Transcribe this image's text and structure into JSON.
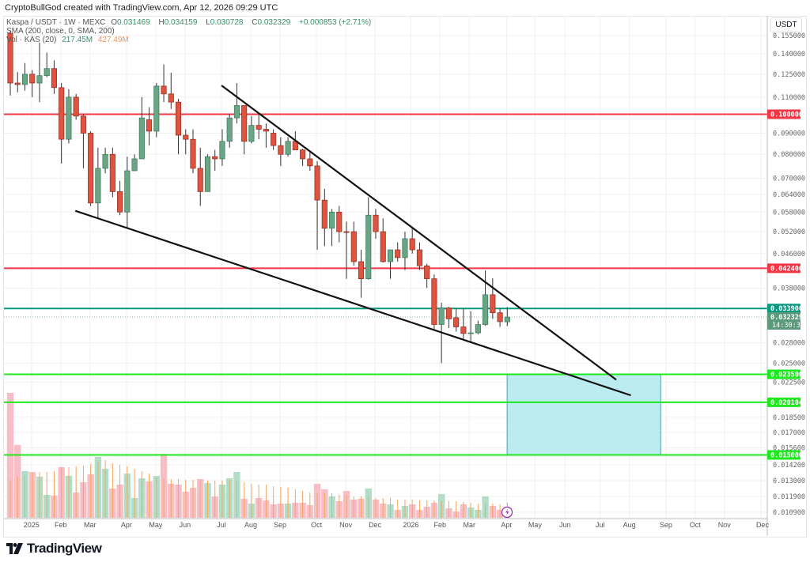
{
  "credit": "CryptoBullGod created with TradingView.com, Apr 12, 2026 09:29 UTC",
  "legend": {
    "symbol": "Kaspa / USDT · 1W · MEXC",
    "o_label": "O",
    "o": "0.031469",
    "h_label": "H",
    "h": "0.034159",
    "l_label": "L",
    "l": "0.030728",
    "c_label": "C",
    "c": "0.032329",
    "change": "+0.000853 (+2.71%)",
    "sma": "SMA (200, close, 0, SMA, 200)",
    "vol": "Vol · KAS (20)",
    "vol_value": "217.45M",
    "vol_ma_value": "427.49M"
  },
  "axis_currency": "USDT",
  "logo_text": "TradingView",
  "colors": {
    "up": "#6aa584",
    "down": "#dd5441",
    "red_line": "#f23645",
    "teal_line": "#089981",
    "green_line": "#1ee81e",
    "box": "#b9eaf0",
    "vol_up": "#aedcc5",
    "vol_down": "#f7bcc2",
    "vol_ma": "#f7a35c"
  },
  "chart_data": {
    "type": "candlestick",
    "title": "Kaspa / USDT · 1W · MEXC",
    "yscale": "log",
    "ylim": [
      0.01057,
      0.169
    ],
    "x_unit": "week index from first visible bar",
    "y_ticks": [
      "0.155000",
      "0.140000",
      "0.125000",
      "0.110000",
      "0.090000",
      "0.080000",
      "0.070000",
      "0.064000",
      "0.058000",
      "0.052000",
      "0.046000",
      "0.038000",
      "0.028000",
      "0.025000",
      "0.022500",
      "0.018500",
      "0.017000",
      "0.015600",
      "0.014200",
      "0.013000",
      "0.011900",
      "0.010900"
    ],
    "x_ticks": [
      {
        "label": "2025",
        "t": 2.9
      },
      {
        "label": "Feb",
        "t": 6.9
      },
      {
        "label": "Mar",
        "t": 10.9
      },
      {
        "label": "Apr",
        "t": 15.9
      },
      {
        "label": "May",
        "t": 19.9
      },
      {
        "label": "Jun",
        "t": 23.9
      },
      {
        "label": "Jul",
        "t": 28.9
      },
      {
        "label": "Aug",
        "t": 32.9
      },
      {
        "label": "Sep",
        "t": 36.9
      },
      {
        "label": "Oct",
        "t": 41.9
      },
      {
        "label": "Nov",
        "t": 45.9
      },
      {
        "label": "Dec",
        "t": 49.9
      },
      {
        "label": "2026",
        "t": 54.8
      },
      {
        "label": "Feb",
        "t": 58.8
      },
      {
        "label": "Mar",
        "t": 62.8
      },
      {
        "label": "Apr",
        "t": 67.9
      },
      {
        "label": "May",
        "t": 71.8
      },
      {
        "label": "Jun",
        "t": 75.9
      },
      {
        "label": "Jul",
        "t": 80.7
      },
      {
        "label": "Aug",
        "t": 84.7
      },
      {
        "label": "Sep",
        "t": 89.7
      },
      {
        "label": "Oct",
        "t": 93.7
      },
      {
        "label": "Nov",
        "t": 97.7
      },
      {
        "label": "Dec",
        "t": 102.7
      }
    ],
    "candles_columns": [
      "open",
      "high",
      "low",
      "close",
      "volume_M",
      "volume_sma_M"
    ],
    "candles": [
      [
        0.157,
        0.159,
        0.111,
        0.119,
        3476,
        1056
      ],
      [
        0.119,
        0.1265,
        0.113,
        0.118,
        2024,
        1144
      ],
      [
        0.118,
        0.133,
        0.114,
        0.125,
        1298,
        1188
      ],
      [
        0.125,
        0.128,
        0.11,
        0.119,
        1276,
        1254
      ],
      [
        0.119,
        0.149,
        0.107,
        0.124,
        1144,
        1276
      ],
      [
        0.124,
        0.141,
        0.123,
        0.129,
        638,
        1276
      ],
      [
        0.129,
        0.135,
        0.112,
        0.116,
        616,
        1298
      ],
      [
        0.116,
        0.119,
        0.076,
        0.087,
        1408,
        1408
      ],
      [
        0.087,
        0.115,
        0.085,
        0.11,
        1166,
        1408
      ],
      [
        0.11,
        0.112,
        0.097,
        0.099,
        704,
        1430
      ],
      [
        0.099,
        0.1,
        0.074,
        0.09,
        990,
        1452
      ],
      [
        0.09,
        0.091,
        0.06,
        0.061,
        1210,
        1496
      ],
      [
        0.061,
        0.083,
        0.056,
        0.074,
        1694,
        1562
      ],
      [
        0.074,
        0.083,
        0.072,
        0.08,
        1364,
        1606
      ],
      [
        0.08,
        0.083,
        0.063,
        0.065,
        814,
        1518
      ],
      [
        0.065,
        0.069,
        0.057,
        0.058,
        924,
        1474
      ],
      [
        0.058,
        0.079,
        0.053,
        0.073,
        1232,
        1430
      ],
      [
        0.073,
        0.08,
        0.073,
        0.078,
        550,
        1364
      ],
      [
        0.078,
        0.11,
        0.078,
        0.098,
        1100,
        1298
      ],
      [
        0.097,
        0.104,
        0.084,
        0.091,
        1012,
        1232
      ],
      [
        0.091,
        0.119,
        0.088,
        0.117,
        1166,
        1122
      ],
      [
        0.117,
        0.132,
        0.107,
        0.112,
        1782,
        1100
      ],
      [
        0.112,
        0.126,
        0.103,
        0.107,
        946,
        1078
      ],
      [
        0.107,
        0.109,
        0.08,
        0.089,
        924,
        1078
      ],
      [
        0.089,
        0.092,
        0.08,
        0.087,
        726,
        1056
      ],
      [
        0.087,
        0.092,
        0.072,
        0.074,
        836,
        1056
      ],
      [
        0.074,
        0.083,
        0.06,
        0.065,
        1078,
        1056
      ],
      [
        0.065,
        0.08,
        0.065,
        0.079,
        968,
        1034
      ],
      [
        0.079,
        0.082,
        0.073,
        0.078,
        594,
        1034
      ],
      [
        0.078,
        0.092,
        0.075,
        0.086,
        924,
        1034
      ],
      [
        0.086,
        0.1,
        0.083,
        0.098,
        1100,
        1056
      ],
      [
        0.098,
        0.119,
        0.095,
        0.105,
        1276,
        1056
      ],
      [
        0.105,
        0.1052,
        0.08,
        0.086,
        528,
        990
      ],
      [
        0.086,
        0.099,
        0.085,
        0.094,
        396,
        946
      ],
      [
        0.094,
        0.1,
        0.087,
        0.092,
        550,
        924
      ],
      [
        0.092,
        0.095,
        0.083,
        0.091,
        484,
        924
      ],
      [
        0.09,
        0.092,
        0.082,
        0.084,
        374,
        880
      ],
      [
        0.084,
        0.088,
        0.075,
        0.08,
        396,
        858
      ],
      [
        0.08,
        0.088,
        0.079,
        0.086,
        396,
        836
      ],
      [
        0.086,
        0.091,
        0.082,
        0.082,
        418,
        792
      ],
      [
        0.082,
        0.0825,
        0.075,
        0.078,
        418,
        748
      ],
      [
        0.078,
        0.081,
        0.073,
        0.075,
        352,
        704
      ],
      [
        0.075,
        0.077,
        0.047,
        0.062,
        946,
        682
      ],
      [
        0.062,
        0.066,
        0.048,
        0.053,
        792,
        682
      ],
      [
        0.053,
        0.059,
        0.048,
        0.058,
        594,
        682
      ],
      [
        0.058,
        0.06,
        0.049,
        0.052,
        462,
        638
      ],
      [
        0.052,
        0.055,
        0.04,
        0.0518,
        748,
        638
      ],
      [
        0.052,
        0.055,
        0.043,
        0.044,
        506,
        594
      ],
      [
        0.044,
        0.047,
        0.036,
        0.04,
        528,
        594
      ],
      [
        0.04,
        0.063,
        0.0398,
        0.057,
        814,
        594
      ],
      [
        0.057,
        0.059,
        0.05,
        0.052,
        506,
        550
      ],
      [
        0.052,
        0.056,
        0.0438,
        0.044,
        396,
        550
      ],
      [
        0.044,
        0.047,
        0.04,
        0.047,
        374,
        550
      ],
      [
        0.047,
        0.049,
        0.044,
        0.045,
        220,
        506
      ],
      [
        0.045,
        0.052,
        0.042,
        0.05,
        330,
        506
      ],
      [
        0.05,
        0.053,
        0.046,
        0.047,
        374,
        506
      ],
      [
        0.047,
        0.049,
        0.042,
        0.043,
        220,
        484
      ],
      [
        0.043,
        0.0435,
        0.038,
        0.04,
        308,
        484
      ],
      [
        0.04,
        0.041,
        0.03,
        0.031,
        418,
        484
      ],
      [
        0.031,
        0.035,
        0.025,
        0.034,
        660,
        462
      ],
      [
        0.034,
        0.0342,
        0.0304,
        0.032,
        264,
        462
      ],
      [
        0.0322,
        0.0339,
        0.0298,
        0.0306,
        176,
        462
      ],
      [
        0.0306,
        0.0339,
        0.0285,
        0.0295,
        374,
        440
      ],
      [
        0.0295,
        0.0334,
        0.0281,
        0.0296,
        286,
        418
      ],
      [
        0.0296,
        0.0317,
        0.0294,
        0.031,
        220,
        396
      ],
      [
        0.031,
        0.0419,
        0.0308,
        0.0366,
        594,
        396
      ],
      [
        0.0366,
        0.0401,
        0.032,
        0.0331,
        330,
        396
      ],
      [
        0.0331,
        0.0339,
        0.0306,
        0.0315,
        220,
        374
      ],
      [
        0.031469,
        0.034159,
        0.030728,
        0.032329,
        217.45,
        427.49
      ]
    ],
    "horizontal_levels": [
      {
        "price": 0.1,
        "label": "0.100000",
        "color": "#f23645"
      },
      {
        "price": 0.0424,
        "label": "0.042400",
        "color": "#f23645"
      },
      {
        "price": 0.0339,
        "label": "0.033900",
        "color": "#089981"
      },
      {
        "price": 0.0235,
        "label": "0.023500",
        "color": "#1ee81e"
      },
      {
        "price": 0.020104,
        "label": "0.020104",
        "color": "#1ee81e"
      },
      {
        "price": 0.015,
        "label": "0.015000",
        "color": "#1ee81e"
      }
    ],
    "last_price": {
      "price": 0.032329,
      "label": "0.032329",
      "countdown": "14:30:38"
    },
    "trendlines": [
      {
        "name": "upper-trendline",
        "from": [
          28.9,
          0.1174
        ],
        "to": [
          82.9,
          0.0228
        ]
      },
      {
        "name": "lower-trendline",
        "from": [
          8.9,
          0.0584
        ],
        "to": [
          84.9,
          0.0209
        ]
      }
    ],
    "target_box": {
      "t_from": 68,
      "t_to": 89,
      "price_top": 0.0235,
      "price_bottom": 0.015
    }
  }
}
